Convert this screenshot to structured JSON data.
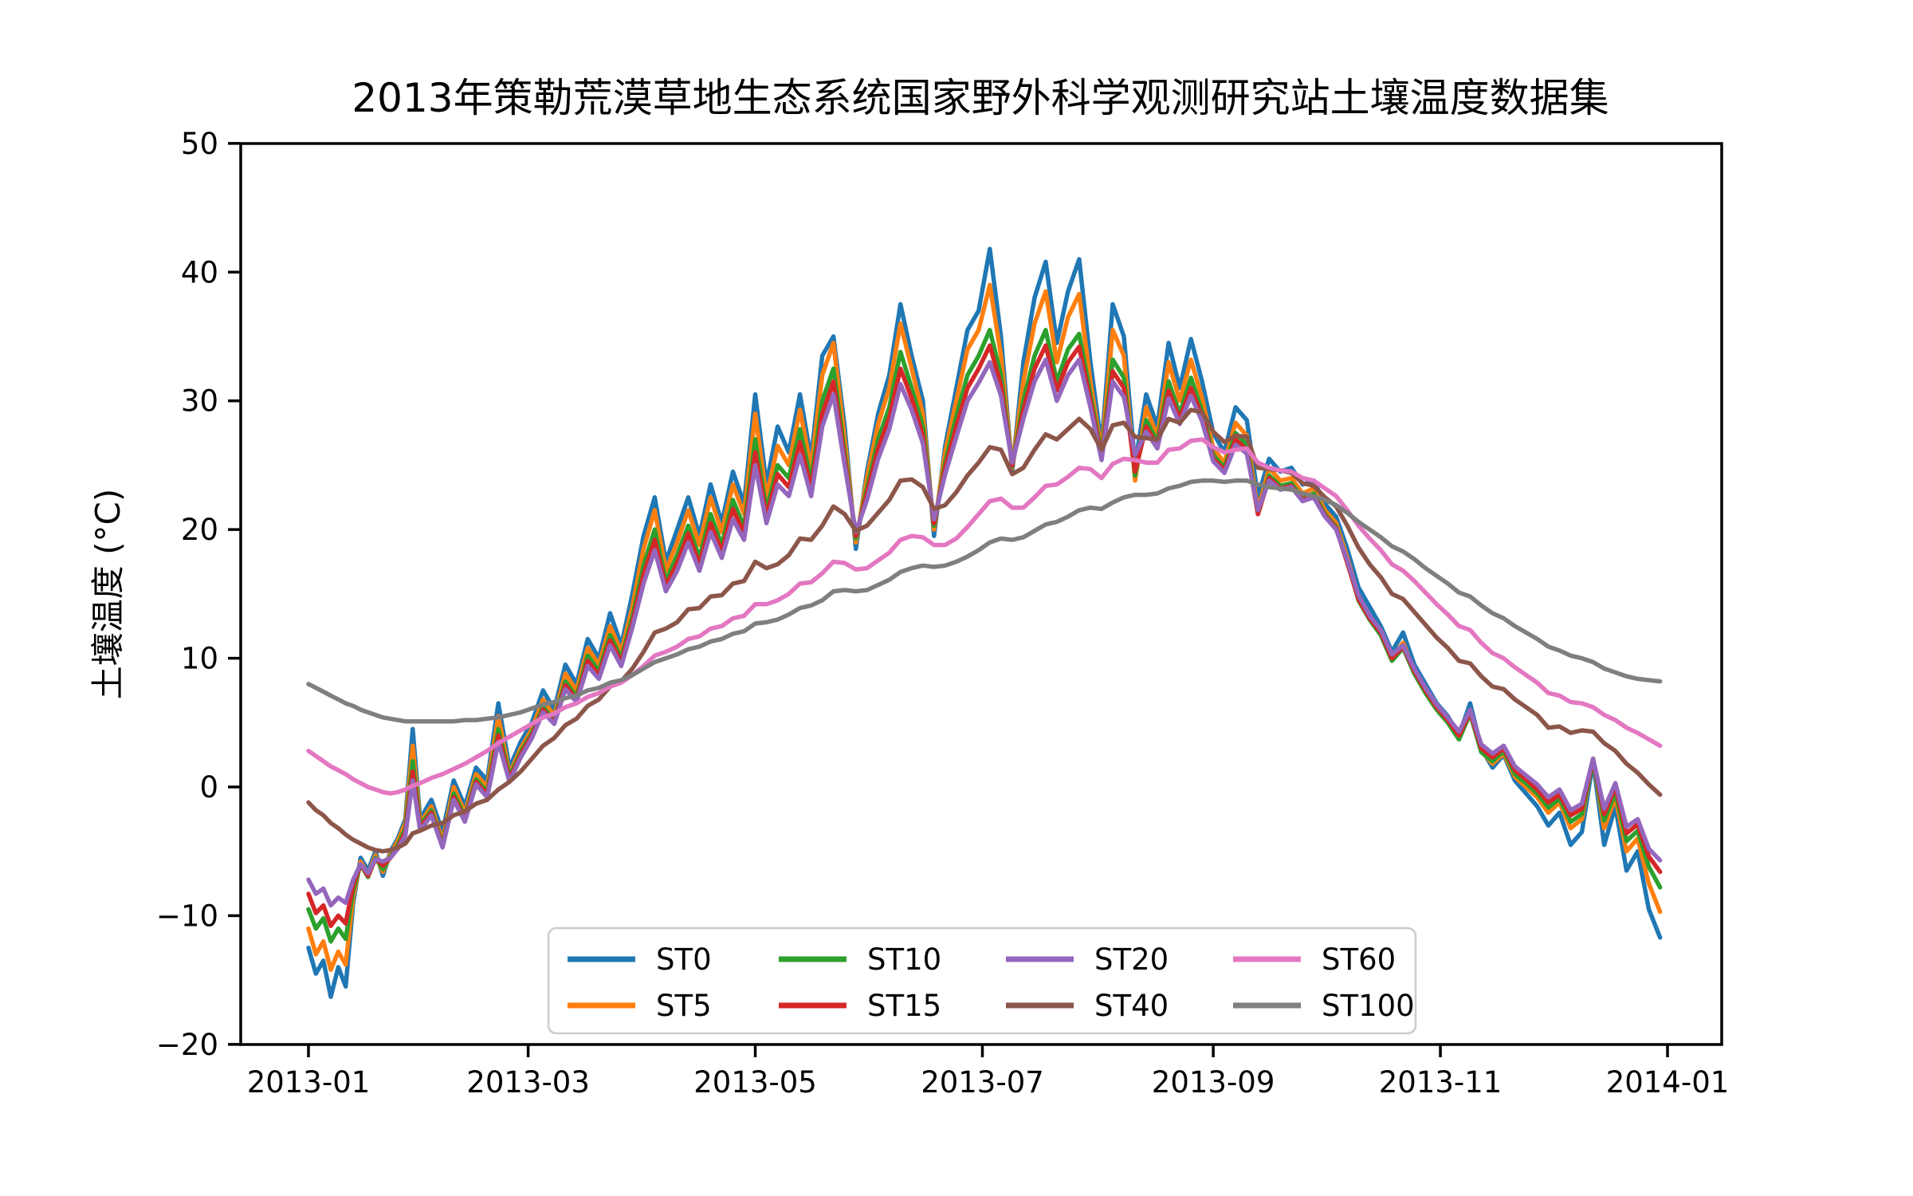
{
  "title": "2013年策勒荒漠草地生态系统国家野外科学观测研究站土壤温度数据集",
  "axes": {
    "ylabel": "土壤温度 (°C)",
    "xlabel": "",
    "y_tick_labels": [
      "50",
      "40",
      "30",
      "20",
      "10",
      "0",
      "−10",
      "−20"
    ],
    "x_tick_labels": [
      "2013-01",
      "2013-03",
      "2013-05",
      "2013-07",
      "2013-09",
      "2013-11",
      "2014-01"
    ]
  },
  "legend": {
    "entries": [
      "ST0",
      "ST5",
      "ST10",
      "ST15",
      "ST20",
      "ST40",
      "ST60",
      "ST100"
    ]
  },
  "chart_data": {
    "type": "line",
    "title": "2013年策勒荒漠草地生态系统国家野外科学观测研究站土壤温度数据集",
    "xlabel": "",
    "ylabel": "土壤温度 (°C)",
    "ylim": [
      -20,
      50
    ],
    "grid": false,
    "legend_position": "lower center inside plot, 2 rows x 4 columns",
    "x_unit": "day of year 2013 (daily series, sampled)",
    "x_ticks": [
      {
        "label": "2013-01",
        "day": 1
      },
      {
        "label": "2013-03",
        "day": 60
      },
      {
        "label": "2013-05",
        "day": 121
      },
      {
        "label": "2013-07",
        "day": 182
      },
      {
        "label": "2013-09",
        "day": 244
      },
      {
        "label": "2013-11",
        "day": 305
      },
      {
        "label": "2014-01",
        "day": 366
      }
    ],
    "y_ticks": [
      {
        "label": "50",
        "value": 50
      },
      {
        "label": "40",
        "value": 40
      },
      {
        "label": "30",
        "value": 30
      },
      {
        "label": "20",
        "value": 20
      },
      {
        "label": "10",
        "value": 10
      },
      {
        "label": "0",
        "value": 0
      },
      {
        "label": "−10",
        "value": -10
      },
      {
        "label": "−20",
        "value": -20
      }
    ],
    "days": [
      1,
      3,
      5,
      7,
      9,
      11,
      13,
      15,
      17,
      19,
      21,
      23,
      25,
      27,
      29,
      31,
      34,
      37,
      40,
      43,
      46,
      49,
      52,
      55,
      58,
      61,
      64,
      67,
      70,
      73,
      76,
      79,
      82,
      85,
      88,
      91,
      94,
      97,
      100,
      103,
      106,
      109,
      112,
      115,
      118,
      121,
      124,
      127,
      130,
      133,
      136,
      139,
      142,
      145,
      148,
      151,
      154,
      157,
      160,
      163,
      166,
      169,
      172,
      175,
      178,
      181,
      184,
      187,
      190,
      193,
      196,
      199,
      202,
      205,
      208,
      211,
      214,
      217,
      220,
      223,
      226,
      229,
      232,
      235,
      238,
      241,
      244,
      247,
      250,
      253,
      256,
      259,
      262,
      265,
      268,
      271,
      274,
      277,
      280,
      283,
      286,
      289,
      292,
      295,
      298,
      301,
      304,
      307,
      310,
      313,
      316,
      319,
      322,
      325,
      328,
      331,
      334,
      337,
      340,
      343,
      346,
      349,
      352,
      355,
      358,
      361,
      364
    ],
    "series": [
      {
        "name": "ST0",
        "depth_cm": 0,
        "color": "#1f77b4",
        "values": [
          -12.5,
          -14.5,
          -13.5,
          -16.3,
          -14,
          -15.5,
          -9,
          -5.5,
          -6.5,
          -5,
          -6.9,
          -5,
          -4,
          -2.5,
          4.5,
          -2.5,
          -1,
          -3.5,
          0.5,
          -1.5,
          1.5,
          0.5,
          6.5,
          1.5,
          3.5,
          5,
          7.5,
          6,
          9.5,
          8,
          11.5,
          10,
          13.5,
          11,
          15,
          19.5,
          22.5,
          17.5,
          20,
          22.5,
          19.5,
          23.5,
          20.5,
          24.5,
          22,
          30.5,
          23.5,
          28,
          26,
          30.5,
          25.5,
          33.5,
          35,
          28,
          18.5,
          24.5,
          29,
          32,
          37.5,
          33.5,
          30,
          19.5,
          26.5,
          31,
          35.5,
          37,
          41.8,
          35,
          24.5,
          33,
          38,
          40.8,
          34.5,
          38.5,
          41,
          33,
          26.5,
          37.5,
          35,
          25,
          30.5,
          28,
          34.5,
          31,
          34.8,
          31.5,
          27.5,
          26,
          29.5,
          28.5,
          22.5,
          25.5,
          24.5,
          24.8,
          23.5,
          23.8,
          22,
          21,
          18.5,
          15.5,
          14,
          12.5,
          10.5,
          12,
          9.5,
          8,
          6.5,
          5.5,
          4,
          6.5,
          3,
          1.5,
          2.5,
          0.5,
          -0.5,
          -1.5,
          -3,
          -2,
          -4.5,
          -3.5,
          2,
          -4.5,
          -1.5,
          -6.5,
          -5,
          -9.5,
          -11.7
        ]
      },
      {
        "name": "ST5",
        "depth_cm": 5,
        "color": "#ff7f0e",
        "values": [
          -11,
          -13,
          -12,
          -14.2,
          -12.8,
          -13.8,
          -8.5,
          -5.8,
          -6.8,
          -5.3,
          -6.6,
          -5.2,
          -4.2,
          -2.8,
          3.2,
          -2.8,
          -1.5,
          -4.2,
          0,
          -2,
          1,
          0,
          5.5,
          1,
          3,
          4.5,
          6.8,
          5.5,
          8.8,
          7.5,
          10.8,
          9.5,
          12.5,
          10.5,
          14,
          18.5,
          21.5,
          16.8,
          19,
          21.5,
          18.8,
          22.5,
          19.8,
          23.5,
          21.2,
          29,
          22.5,
          26.5,
          25,
          29.3,
          24.8,
          32,
          34.5,
          27,
          19,
          24,
          28.2,
          31,
          36,
          32.5,
          29,
          20,
          26,
          30,
          34,
          35.5,
          39,
          33.5,
          24.8,
          31.5,
          36,
          38.5,
          33,
          36.5,
          38.3,
          31.5,
          26,
          35.5,
          33.5,
          23.8,
          29.5,
          27.2,
          33,
          30,
          33.2,
          30.2,
          26.3,
          25.2,
          28.3,
          27.3,
          21.5,
          24.8,
          23.8,
          24,
          22.8,
          23.2,
          21.5,
          20.5,
          17.8,
          14.8,
          13.2,
          12,
          10,
          11.2,
          9,
          7.5,
          6.2,
          5.2,
          3.8,
          6,
          2.8,
          1.8,
          2.6,
          0.8,
          0,
          -0.8,
          -2,
          -1.2,
          -3.2,
          -2.5,
          2.2,
          -3.2,
          -0.8,
          -5,
          -4,
          -7.5,
          -9.7
        ]
      },
      {
        "name": "ST10",
        "depth_cm": 10,
        "color": "#2ca02c",
        "values": [
          -9.5,
          -11,
          -10.2,
          -12,
          -11,
          -11.8,
          -8,
          -6,
          -7,
          -5.5,
          -6.4,
          -5.4,
          -4.5,
          -3.2,
          2,
          -3,
          -1.8,
          -4.5,
          -0.5,
          -2.3,
          0.6,
          -0.4,
          4.5,
          0.8,
          2.7,
          4.2,
          6.2,
          5.2,
          8.2,
          7,
          10.2,
          9,
          11.8,
          10,
          13.2,
          17.2,
          20,
          16,
          18,
          20.3,
          17.8,
          21.2,
          18.8,
          22.3,
          20.2,
          27,
          21.5,
          25,
          24,
          27.8,
          23.8,
          30,
          32.5,
          26,
          19.3,
          23.2,
          27,
          29.5,
          33.8,
          31,
          28,
          20.3,
          25.2,
          28.8,
          32,
          33.5,
          35.5,
          32,
          24.9,
          30,
          33.5,
          35.5,
          31.5,
          34,
          35.2,
          30.5,
          25.8,
          33.2,
          31.8,
          24.2,
          28.5,
          26.8,
          31.5,
          29,
          31.8,
          29.2,
          25.8,
          24.8,
          27.5,
          26.6,
          21.2,
          24.2,
          23.4,
          23.6,
          22.4,
          22.8,
          21.2,
          20.2,
          17.5,
          14.5,
          13,
          11.8,
          9.8,
          10.8,
          8.8,
          7.3,
          6,
          5,
          3.7,
          5.7,
          2.7,
          2,
          2.8,
          1,
          0.3,
          -0.5,
          -1.6,
          -0.9,
          -2.7,
          -2.1,
          2,
          -2.6,
          -0.4,
          -4.2,
          -3.4,
          -6.2,
          -7.8
        ]
      },
      {
        "name": "ST15",
        "depth_cm": 15,
        "color": "#d62728",
        "values": [
          -8.3,
          -9.8,
          -9.2,
          -10.8,
          -10,
          -10.6,
          -7.6,
          -6,
          -6.9,
          -5.6,
          -6.1,
          -5.5,
          -4.7,
          -3.5,
          1.2,
          -3.2,
          -2,
          -4.6,
          -0.8,
          -2.5,
          0.4,
          -0.6,
          4,
          0.6,
          2.5,
          4,
          6,
          5,
          7.9,
          6.8,
          9.8,
          8.7,
          11.4,
          9.7,
          12.8,
          16.5,
          19.2,
          15.6,
          17.4,
          19.7,
          17.3,
          20.5,
          18.3,
          21.6,
          19.7,
          26,
          21,
          24.3,
          23.3,
          26.8,
          23.2,
          29,
          31.5,
          25.5,
          19.5,
          22.8,
          26.3,
          28.7,
          32.5,
          30.2,
          27.3,
          20.5,
          24.8,
          28,
          31,
          32.5,
          34.3,
          31.2,
          25,
          29.3,
          32.5,
          34.3,
          30.8,
          33,
          34.2,
          30,
          25.6,
          32.3,
          31,
          24.5,
          28,
          26.5,
          30.8,
          28.6,
          31,
          28.8,
          25.5,
          24.6,
          27,
          26.2,
          21.2,
          24,
          23.2,
          23.4,
          22.3,
          22.6,
          21.1,
          20.1,
          17.4,
          14.6,
          13.1,
          12,
          10,
          10.9,
          9,
          7.5,
          6.2,
          5.2,
          4,
          5.8,
          3,
          2.3,
          3,
          1.3,
          0.6,
          -0.2,
          -1.2,
          -0.6,
          -2.2,
          -1.7,
          2.1,
          -2.1,
          0,
          -3.6,
          -2.9,
          -5.4,
          -6.6
        ]
      },
      {
        "name": "ST20",
        "depth_cm": 20,
        "color": "#9467bd",
        "values": [
          -7.2,
          -8.3,
          -7.9,
          -9.2,
          -8.6,
          -9,
          -7.2,
          -6,
          -6.7,
          -5.6,
          -5.8,
          -5.5,
          -4.8,
          -3.8,
          0.5,
          -3.4,
          -2.2,
          -4.7,
          -1,
          -2.7,
          0.2,
          -0.8,
          3.5,
          0.4,
          2.3,
          3.8,
          5.8,
          4.9,
          7.6,
          6.6,
          9.4,
          8.4,
          11,
          9.4,
          12.4,
          15.8,
          18.4,
          15.2,
          16.8,
          19,
          16.8,
          19.8,
          17.8,
          20.8,
          19.2,
          25,
          20.5,
          23.5,
          22.6,
          25.8,
          22.6,
          28,
          30.5,
          25,
          19.8,
          22.3,
          25.5,
          27.8,
          31.3,
          29.3,
          26.7,
          20.8,
          24.3,
          27.2,
          30,
          31.4,
          33,
          30.4,
          25.2,
          28.6,
          31.5,
          33.2,
          30,
          32,
          33.2,
          29.5,
          25.4,
          31.5,
          30.3,
          25.8,
          27.6,
          26.3,
          30.2,
          28.2,
          30.4,
          28.4,
          25.3,
          24.4,
          26.6,
          25.9,
          21.5,
          23.8,
          23.1,
          23.3,
          22.2,
          22.5,
          21,
          20,
          17.6,
          14.9,
          13.3,
          12.2,
          10.3,
          11,
          9.2,
          7.7,
          6.4,
          5.4,
          4.3,
          6,
          3.3,
          2.6,
          3.2,
          1.6,
          0.9,
          0.2,
          -0.8,
          -0.2,
          -1.8,
          -1.3,
          2.2,
          -1.7,
          0.3,
          -3.1,
          -2.5,
          -4.8,
          -5.7
        ]
      },
      {
        "name": "ST40",
        "depth_cm": 40,
        "color": "#8c564b",
        "values": [
          -1.2,
          -1.8,
          -2.2,
          -2.8,
          -3.2,
          -3.7,
          -4.1,
          -4.4,
          -4.7,
          -4.9,
          -5,
          -4.9,
          -4.7,
          -4.4,
          -3.6,
          -3.4,
          -3,
          -2.8,
          -2.2,
          -1.9,
          -1.3,
          -1,
          -0.2,
          0.4,
          1.2,
          2.2,
          3.2,
          3.8,
          4.8,
          5.3,
          6.3,
          6.8,
          7.8,
          8.2,
          9.2,
          10.5,
          12,
          12.3,
          12.8,
          13.8,
          13.9,
          14.8,
          14.9,
          15.8,
          16,
          17.5,
          17,
          17.3,
          18,
          19.3,
          19.2,
          20.3,
          21.8,
          21.2,
          19.9,
          20.3,
          21.3,
          22.3,
          23.8,
          23.9,
          23.3,
          21.6,
          21.9,
          22.9,
          24.2,
          25.2,
          26.4,
          26.2,
          24.3,
          24.8,
          26.2,
          27.4,
          27,
          27.8,
          28.6,
          27.8,
          26.2,
          28.1,
          28.3,
          27.2,
          27.1,
          27,
          28.6,
          28.3,
          29.3,
          29.1,
          27.6,
          26.8,
          27.3,
          27.2,
          24.8,
          24.7,
          24.6,
          24.4,
          23.6,
          23.4,
          22.5,
          21.8,
          20.3,
          18.6,
          17.3,
          16.3,
          15,
          14.6,
          13.6,
          12.6,
          11.6,
          10.8,
          9.8,
          9.6,
          8.6,
          7.8,
          7.6,
          6.8,
          6.2,
          5.6,
          4.6,
          4.7,
          4.2,
          4.4,
          4.3,
          3.4,
          2.8,
          1.8,
          1.1,
          0.2,
          -0.6
        ]
      },
      {
        "name": "ST60",
        "depth_cm": 60,
        "color": "#e377c2",
        "values": [
          2.8,
          2.4,
          2,
          1.6,
          1.3,
          1,
          0.6,
          0.3,
          0,
          -0.2,
          -0.4,
          -0.5,
          -0.4,
          -0.2,
          0.1,
          0.3,
          0.7,
          1,
          1.4,
          1.8,
          2.3,
          2.8,
          3.4,
          3.9,
          4.4,
          4.9,
          5.4,
          5.7,
          6.2,
          6.5,
          7,
          7.3,
          7.8,
          8.1,
          8.7,
          9.4,
          10.2,
          10.5,
          10.9,
          11.5,
          11.7,
          12.3,
          12.5,
          13.1,
          13.3,
          14.2,
          14.2,
          14.5,
          15,
          15.8,
          15.9,
          16.6,
          17.5,
          17.4,
          16.9,
          17,
          17.6,
          18.2,
          19.2,
          19.5,
          19.4,
          18.8,
          18.8,
          19.3,
          20.2,
          21.2,
          22.2,
          22.4,
          21.7,
          21.7,
          22.5,
          23.4,
          23.5,
          24.1,
          24.8,
          24.7,
          24,
          25.1,
          25.5,
          25.4,
          25.2,
          25.2,
          26.2,
          26.3,
          26.9,
          27,
          26.4,
          26,
          26.2,
          26.3,
          25.2,
          24.8,
          24.6,
          24.5,
          24,
          23.8,
          23.2,
          22.6,
          21.5,
          20.3,
          19.3,
          18.4,
          17.3,
          16.8,
          16,
          15.1,
          14.2,
          13.4,
          12.5,
          12.2,
          11.2,
          10.4,
          10,
          9.3,
          8.7,
          8.1,
          7.3,
          7.1,
          6.6,
          6.5,
          6.2,
          5.6,
          5.2,
          4.6,
          4.2,
          3.7,
          3.2
        ]
      },
      {
        "name": "ST100",
        "depth_cm": 100,
        "color": "#7f7f7f",
        "values": [
          8,
          7.7,
          7.4,
          7.1,
          6.8,
          6.5,
          6.3,
          6,
          5.8,
          5.6,
          5.4,
          5.3,
          5.2,
          5.1,
          5.1,
          5.1,
          5.1,
          5.1,
          5.1,
          5.2,
          5.2,
          5.3,
          5.4,
          5.6,
          5.8,
          6.1,
          6.4,
          6.6,
          6.9,
          7.1,
          7.5,
          7.7,
          8.1,
          8.3,
          8.7,
          9.2,
          9.7,
          10,
          10.3,
          10.7,
          10.9,
          11.3,
          11.5,
          11.9,
          12.1,
          12.7,
          12.8,
          13,
          13.4,
          13.9,
          14.1,
          14.5,
          15.2,
          15.3,
          15.2,
          15.3,
          15.7,
          16.1,
          16.7,
          17,
          17.2,
          17.1,
          17.2,
          17.5,
          17.9,
          18.4,
          19,
          19.3,
          19.2,
          19.4,
          19.9,
          20.4,
          20.6,
          21,
          21.5,
          21.7,
          21.6,
          22.1,
          22.5,
          22.7,
          22.7,
          22.8,
          23.2,
          23.4,
          23.7,
          23.8,
          23.8,
          23.7,
          23.8,
          23.8,
          23.5,
          23.3,
          23.2,
          23.1,
          22.8,
          22.6,
          22.3,
          21.9,
          21.3,
          20.6,
          20,
          19.4,
          18.7,
          18.3,
          17.7,
          17,
          16.4,
          15.8,
          15.1,
          14.8,
          14.1,
          13.5,
          13.1,
          12.5,
          12,
          11.5,
          10.9,
          10.6,
          10.2,
          10,
          9.7,
          9.2,
          8.9,
          8.6,
          8.4,
          8.3,
          8.2
        ]
      }
    ]
  }
}
